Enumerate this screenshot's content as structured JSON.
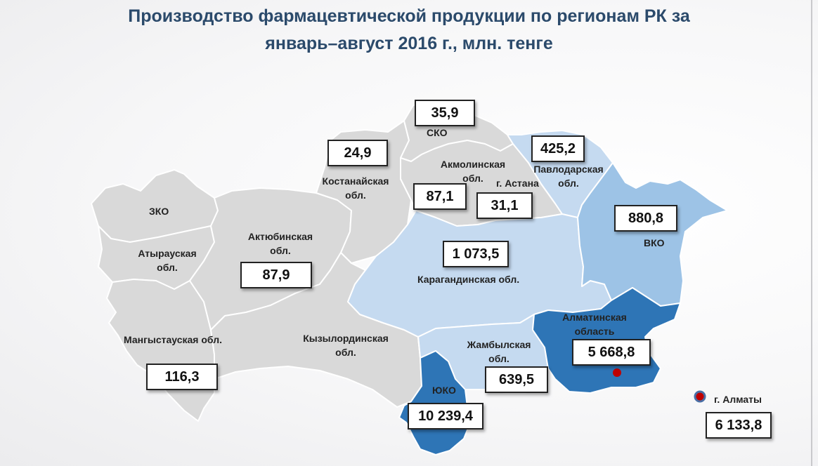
{
  "title": {
    "line1": "Производство фармацевтической продукции по регионам РК за",
    "line2": "январь–август 2016 г., млн. тенге"
  },
  "colors": {
    "none": "#d9d9d9",
    "light": "#c5daf0",
    "medium": "#9dc3e6",
    "dark": "#2e75b6",
    "city_marker": "#c00000"
  },
  "regions": {
    "zko": {
      "name": "ЗКО"
    },
    "atyrau": {
      "name": "Атырауская обл."
    },
    "mangystau": {
      "name": "Мангыстауская обл.",
      "value": "116,3"
    },
    "aktobe": {
      "name": "Актюбинская обл.",
      "value": "87,9"
    },
    "kostanay": {
      "name": "Костанайская обл.",
      "value": "24,9"
    },
    "sko": {
      "name": "СКО",
      "value": "35,9"
    },
    "akmola": {
      "name": "Акмолинская обл.",
      "value": "87,1"
    },
    "astana": {
      "name": "г. Астана",
      "value": "31,1"
    },
    "pavlodar": {
      "name": "Павлодарская обл.",
      "value": "425,2"
    },
    "vko": {
      "name": "ВКО",
      "value": "880,8"
    },
    "karaganda": {
      "name": "Карагандинская обл.",
      "value": "1 073,5"
    },
    "kyzylorda": {
      "name": "Кызылординская обл."
    },
    "zhambyl": {
      "name": "Жамбылская обл.",
      "value": "639,5"
    },
    "uko": {
      "name": "ЮКО",
      "value": "10 239,4"
    },
    "almaty_obl": {
      "name": "Алматинская область",
      "value": "5 668,8"
    },
    "almaty_city": {
      "name": "г. Алматы",
      "value": "6 133,8"
    }
  }
}
